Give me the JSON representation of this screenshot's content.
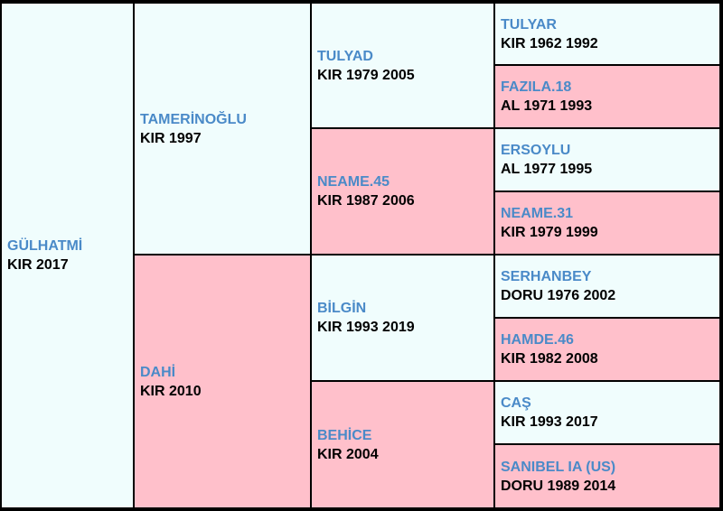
{
  "subject": {
    "name": "GÜLHATMİ",
    "info": "KIR 2017"
  },
  "sire": {
    "name": "TAMERİNOĞLU",
    "info": "KIR 1997"
  },
  "dam": {
    "name": "DAHİ",
    "info": "KIR 2010"
  },
  "sire_sire": {
    "name": "TULYAD",
    "info": "KIR 1979 2005"
  },
  "sire_dam": {
    "name": "NEAME.45",
    "info": "KIR 1987 2006"
  },
  "dam_sire": {
    "name": "BİLGİN",
    "info": "KIR 1993 2019"
  },
  "dam_dam": {
    "name": "BEHİCE",
    "info": "KIR 2004"
  },
  "sss": {
    "name": "TULYAR",
    "info": "KIR 1962 1992"
  },
  "ssd": {
    "name": "FAZILA.18",
    "info": "AL 1971 1993"
  },
  "sds": {
    "name": "ERSOYLU",
    "info": "AL 1977 1995"
  },
  "sdd": {
    "name": "NEAME.31",
    "info": "KIR 1979 1999"
  },
  "dss": {
    "name": "SERHANBEY",
    "info": "DORU 1976 2002"
  },
  "dsd": {
    "name": "HAMDE.46",
    "info": "KIR 1982 2008"
  },
  "dds": {
    "name": "CAŞ",
    "info": "KIR 1993 2017"
  },
  "ddd": {
    "name": "SANIBEL IA (US)",
    "info": "DORU 1989 2014"
  },
  "colors": {
    "male_bg": "#f0fdfd",
    "female_bg": "#ffc0cb",
    "name_text": "#4a8ac8",
    "border": "#000000"
  }
}
